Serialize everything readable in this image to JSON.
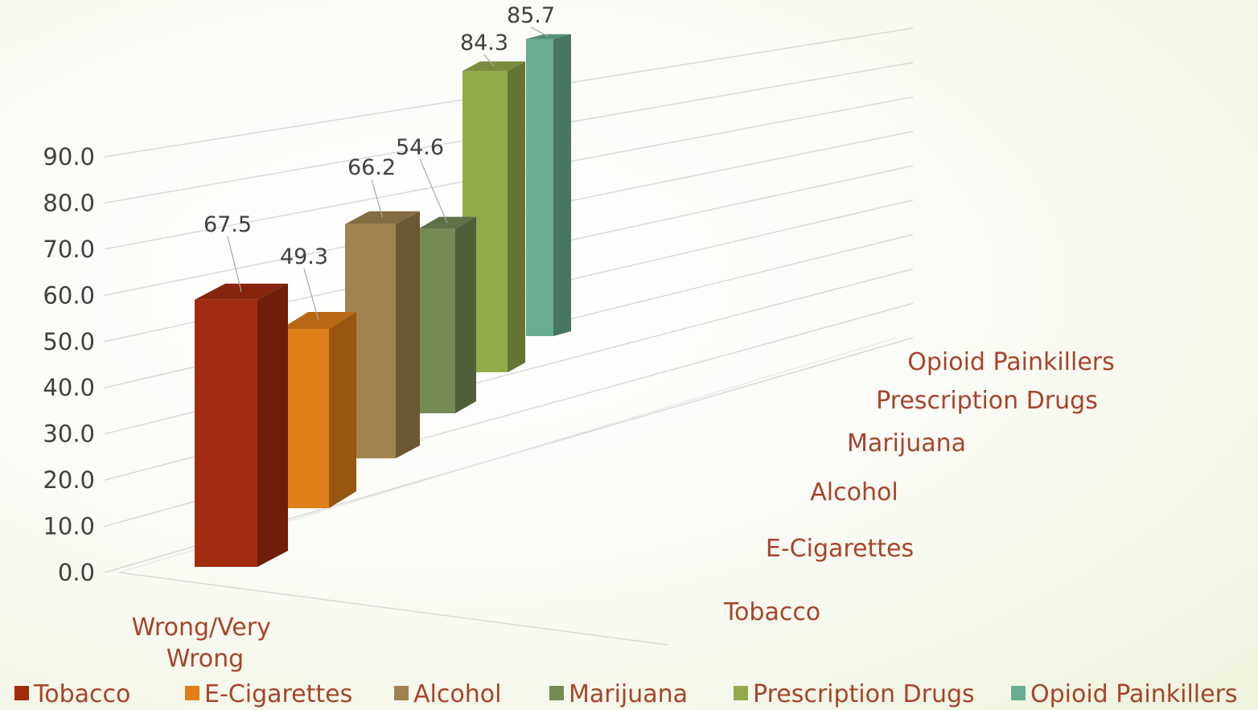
{
  "chart_data": {
    "type": "bar",
    "subtype": "3d-column",
    "categories": [
      "Wrong/Very Wrong"
    ],
    "category_lines": [
      "Wrong/Very",
      "Wrong"
    ],
    "series": [
      {
        "name": "Tobacco",
        "values": [
          67.5
        ],
        "color": "#a32c10"
      },
      {
        "name": "E-Cigarettes",
        "values": [
          49.3
        ],
        "color": "#e07f18"
      },
      {
        "name": "Alcohol",
        "values": [
          66.2
        ],
        "color": "#a08250"
      },
      {
        "name": "Marijuana",
        "values": [
          54.6
        ],
        "color": "#768a56"
      },
      {
        "name": "Prescription Drugs",
        "values": [
          84.3
        ],
        "color": "#93aa4b"
      },
      {
        "name": "Opioid Painkillers",
        "values": [
          85.7
        ],
        "color": "#68ad92"
      }
    ],
    "data_labels": [
      "67.5",
      "49.3",
      "66.2",
      "54.6",
      "84.3",
      "85.7"
    ],
    "y_ticks": [
      "0.0",
      "10.0",
      "20.0",
      "30.0",
      "40.0",
      "50.0",
      "60.0",
      "70.0",
      "80.0",
      "90.0"
    ],
    "ylim": [
      0,
      90
    ],
    "depth_labels": [
      "Tobacco",
      "E-Cigarettes",
      "Alcohol",
      "Marijuana",
      "Prescription Drugs",
      "Opioid Painkillers"
    ],
    "legend": {
      "position": "bottom",
      "items": [
        "Tobacco",
        "E-Cigarettes",
        "Alcohol",
        "Marijuana",
        "Prescription Drugs",
        "Opioid Painkillers"
      ]
    },
    "grid": true
  }
}
